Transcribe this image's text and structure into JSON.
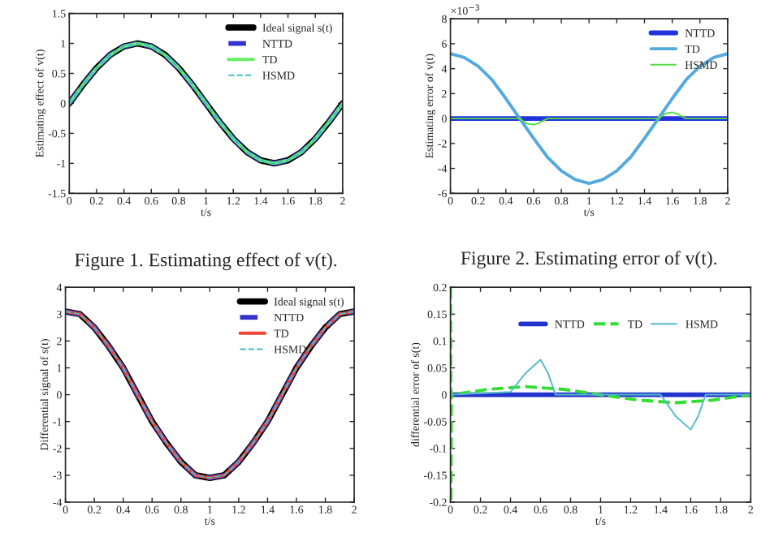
{
  "chart_data": [
    {
      "type": "line",
      "xlabel": "t/s",
      "ylabel": "Estimating effect of v(t)",
      "annotations": [
        "Figure 1. Estimating effect of v(t)."
      ],
      "xlim": [
        0,
        2
      ],
      "xticks": [
        0,
        0.2,
        0.4,
        0.6,
        0.8,
        1,
        1.2,
        1.4,
        1.6,
        1.8,
        2
      ],
      "ylim": [
        -1.5,
        1.5
      ],
      "yticks": [
        -1.5,
        -1,
        -0.5,
        0,
        0.5,
        1,
        1.5
      ],
      "grid": false,
      "legend": "top right",
      "series": [
        {
          "name": "Ideal signal s(t)",
          "color": "#000000",
          "line_style": "solid",
          "x": [
            0,
            0.1,
            0.2,
            0.3,
            0.4,
            0.5,
            0.6,
            0.7,
            0.8,
            0.9,
            1,
            1.1,
            1.2,
            1.3,
            1.4,
            1.5,
            1.6,
            1.7,
            1.8,
            1.9,
            2
          ],
          "values": [
            0,
            0.31,
            0.59,
            0.81,
            0.95,
            1,
            0.95,
            0.81,
            0.59,
            0.31,
            0,
            -0.31,
            -0.59,
            -0.81,
            -0.95,
            -1,
            -0.95,
            -0.81,
            -0.59,
            -0.31,
            0
          ]
        },
        {
          "name": "NTTD",
          "color": "#3333cc",
          "line_style": "dashed",
          "x": [
            0,
            0.1,
            0.2,
            0.3,
            0.4,
            0.5,
            0.6,
            0.7,
            0.8,
            0.9,
            1,
            1.1,
            1.2,
            1.3,
            1.4,
            1.5,
            1.6,
            1.7,
            1.8,
            1.9,
            2
          ],
          "values": [
            0,
            0.31,
            0.59,
            0.81,
            0.95,
            1,
            0.95,
            0.81,
            0.59,
            0.31,
            0,
            -0.31,
            -0.59,
            -0.81,
            -0.95,
            -1,
            -0.95,
            -0.81,
            -0.59,
            -0.31,
            0
          ]
        },
        {
          "name": "TD",
          "color": "#66ee66",
          "line_style": "solid",
          "x": [
            0,
            0.1,
            0.2,
            0.3,
            0.4,
            0.5,
            0.6,
            0.7,
            0.8,
            0.9,
            1,
            1.1,
            1.2,
            1.3,
            1.4,
            1.5,
            1.6,
            1.7,
            1.8,
            1.9,
            2
          ],
          "values": [
            0,
            0.31,
            0.59,
            0.81,
            0.95,
            1,
            0.95,
            0.81,
            0.59,
            0.31,
            0,
            -0.31,
            -0.59,
            -0.81,
            -0.95,
            -1,
            -0.95,
            -0.81,
            -0.59,
            -0.31,
            0
          ]
        },
        {
          "name": "HSMD",
          "color": "#44bbcc",
          "line_style": "dashed",
          "x": [
            0,
            0.1,
            0.2,
            0.3,
            0.4,
            0.5,
            0.6,
            0.7,
            0.8,
            0.9,
            1,
            1.1,
            1.2,
            1.3,
            1.4,
            1.5,
            1.6,
            1.7,
            1.8,
            1.9,
            2
          ],
          "values": [
            0,
            0.31,
            0.59,
            0.81,
            0.95,
            1,
            0.95,
            0.81,
            0.59,
            0.31,
            0,
            -0.31,
            -0.59,
            -0.81,
            -0.95,
            -1,
            -0.95,
            -0.81,
            -0.59,
            -0.31,
            0
          ]
        }
      ]
    },
    {
      "type": "line",
      "xlabel": "t/s",
      "ylabel": "Estimating error of v(t)",
      "annotations": [
        "×10$^{−3}$",
        "Figure 2. Estimating error of v(t)."
      ],
      "xlim": [
        0,
        2
      ],
      "xticks": [
        0,
        0.2,
        0.4,
        0.6,
        0.8,
        1,
        1.2,
        1.4,
        1.6,
        1.8,
        2
      ],
      "ylim": [
        -6,
        8
      ],
      "yticks": [
        -6,
        -4,
        -2,
        0,
        2,
        4,
        6,
        8
      ],
      "grid": false,
      "legend": "top right",
      "series": [
        {
          "name": "NTTD",
          "color": "#2233dd",
          "line_style": "solid",
          "x": [
            0,
            2
          ],
          "values": [
            0,
            0
          ]
        },
        {
          "name": "TD",
          "color": "#55aadd",
          "line_style": "solid",
          "x": [
            0,
            0.1,
            0.2,
            0.3,
            0.4,
            0.5,
            0.6,
            0.7,
            0.8,
            0.9,
            1,
            1.1,
            1.2,
            1.3,
            1.4,
            1.5,
            1.6,
            1.7,
            1.8,
            1.9,
            2
          ],
          "values": [
            5.2,
            4.9,
            4.2,
            3.1,
            1.6,
            0,
            -1.6,
            -3.1,
            -4.2,
            -4.9,
            -5.2,
            -4.9,
            -4.2,
            -3.1,
            -1.6,
            0,
            1.6,
            3.1,
            4.2,
            4.9,
            5.2
          ]
        },
        {
          "name": "HSMD",
          "color": "#55dd44",
          "line_style": "solid",
          "x": [
            0,
            0.5,
            0.55,
            0.6,
            0.65,
            0.7,
            1.5,
            1.55,
            1.6,
            1.65,
            1.7,
            2
          ],
          "values": [
            0,
            0,
            -0.4,
            -0.5,
            -0.3,
            0,
            0,
            0.4,
            0.5,
            0.3,
            0,
            0
          ]
        }
      ]
    },
    {
      "type": "line",
      "xlabel": "t/s",
      "ylabel": "Differential signal of s(t)",
      "xlim": [
        0,
        2
      ],
      "xticks": [
        0,
        0.2,
        0.4,
        0.6,
        0.8,
        1,
        1.2,
        1.4,
        1.6,
        1.8,
        2
      ],
      "ylim": [
        -4,
        4
      ],
      "yticks": [
        -4,
        -3,
        -2,
        -1,
        0,
        1,
        2,
        3,
        4
      ],
      "grid": false,
      "legend": "top right",
      "series": [
        {
          "name": "Ideal signal s(t)",
          "color": "#000000",
          "line_style": "solid",
          "x": [
            0,
            0.1,
            0.2,
            0.3,
            0.4,
            0.5,
            0.6,
            0.7,
            0.8,
            0.9,
            1,
            1.1,
            1.2,
            1.3,
            1.4,
            1.5,
            1.6,
            1.7,
            1.8,
            1.9,
            2
          ],
          "values": [
            3.1,
            3.0,
            2.5,
            1.8,
            1.0,
            0,
            -1.0,
            -1.8,
            -2.5,
            -3.0,
            -3.1,
            -3.0,
            -2.5,
            -1.8,
            -1.0,
            0,
            1.0,
            1.8,
            2.5,
            3.0,
            3.1
          ]
        },
        {
          "name": "NTTD",
          "color": "#3333cc",
          "line_style": "dashed",
          "x": [
            0,
            0.1,
            0.2,
            0.3,
            0.4,
            0.5,
            0.6,
            0.7,
            0.8,
            0.9,
            1,
            1.1,
            1.2,
            1.3,
            1.4,
            1.5,
            1.6,
            1.7,
            1.8,
            1.9,
            2
          ],
          "values": [
            3.1,
            3.0,
            2.5,
            1.8,
            1.0,
            0,
            -1.0,
            -1.8,
            -2.5,
            -3.0,
            -3.1,
            -3.0,
            -2.5,
            -1.8,
            -1.0,
            0,
            1.0,
            1.8,
            2.5,
            3.0,
            3.1
          ]
        },
        {
          "name": "TD",
          "color": "#ee4433",
          "line_style": "solid",
          "x": [
            0,
            0.1,
            0.2,
            0.3,
            0.4,
            0.5,
            0.6,
            0.7,
            0.8,
            0.9,
            1,
            1.1,
            1.2,
            1.3,
            1.4,
            1.5,
            1.6,
            1.7,
            1.8,
            1.9,
            2
          ],
          "values": [
            3.1,
            3.0,
            2.5,
            1.8,
            1.0,
            0,
            -1.0,
            -1.8,
            -2.5,
            -3.0,
            -3.1,
            -3.0,
            -2.5,
            -1.8,
            -1.0,
            0,
            1.0,
            1.8,
            2.5,
            3.0,
            3.1
          ]
        },
        {
          "name": "HSMD",
          "color": "#44bbcc",
          "line_style": "dashed",
          "x": [
            0,
            0.1,
            0.2,
            0.3,
            0.4,
            0.5,
            0.6,
            0.7,
            0.8,
            0.9,
            1,
            1.1,
            1.2,
            1.3,
            1.4,
            1.5,
            1.6,
            1.7,
            1.8,
            1.9,
            2
          ],
          "values": [
            3.1,
            3.0,
            2.5,
            1.8,
            1.0,
            0,
            -1.0,
            -1.8,
            -2.5,
            -3.0,
            -3.1,
            -3.0,
            -2.5,
            -1.8,
            -1.0,
            0,
            1.0,
            1.8,
            2.5,
            3.0,
            3.1
          ]
        }
      ]
    },
    {
      "type": "line",
      "xlabel": "t/s",
      "ylabel": "differential error of s(t)",
      "xlim": [
        0,
        2
      ],
      "xticks": [
        0,
        0.2,
        0.4,
        0.6,
        0.8,
        1,
        1.2,
        1.4,
        1.6,
        1.8,
        2
      ],
      "ylim": [
        -0.2,
        0.2
      ],
      "yticks": [
        -0.2,
        -0.15,
        -0.1,
        -0.05,
        0,
        0.05,
        0.1,
        0.15,
        0.2
      ],
      "grid": false,
      "legend": "top right",
      "series": [
        {
          "name": "NTTD",
          "color": "#2233cc",
          "line_style": "solid",
          "x": [
            0,
            2
          ],
          "values": [
            0,
            0
          ]
        },
        {
          "name": "TD",
          "color": "#33dd33",
          "line_style": "dashed",
          "x": [
            0,
            0.003,
            0.006,
            0.01,
            0.25,
            0.5,
            0.75,
            1,
            1.25,
            1.5,
            1.75,
            2
          ],
          "values": [
            0.2,
            -0.2,
            0.005,
            0,
            0.01,
            0.015,
            0.01,
            0,
            -0.01,
            -0.015,
            -0.01,
            0
          ]
        },
        {
          "name": "HSMD",
          "color": "#55bbcc",
          "line_style": "solid",
          "x": [
            0,
            0.4,
            0.5,
            0.6,
            0.65,
            0.7,
            1.4,
            1.5,
            1.6,
            1.65,
            1.7,
            2
          ],
          "values": [
            0,
            0.005,
            0.04,
            0.065,
            0.04,
            0,
            0,
            -0.04,
            -0.065,
            -0.04,
            0,
            0
          ]
        }
      ]
    }
  ]
}
